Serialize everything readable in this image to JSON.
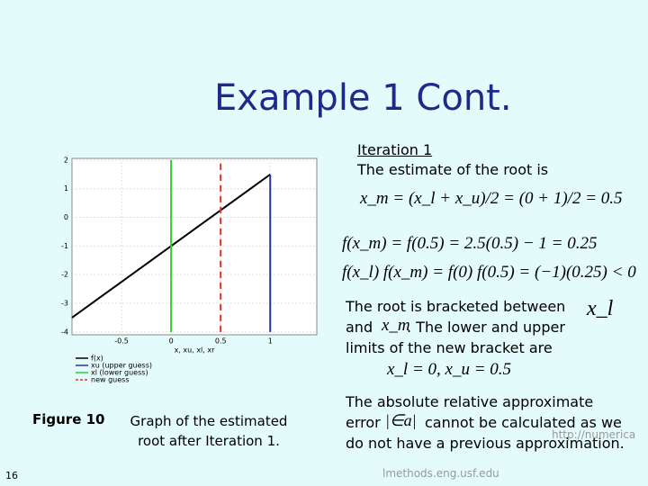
{
  "slide": {
    "title": "Example 1 Cont.",
    "heading": "Iteration 1",
    "intro": "The estimate of the root is",
    "formula_xm": "x_m = (x_l + x_u)/2 = (0 + 1)/2 = 0.5",
    "formula_fxm": "f(x_m) = f(0.5) = 2.5(0.5) − 1 = 0.25",
    "formula_product": "f(x_l) f(x_m) = f(0) f(0.5) = (−1)(0.25) < 0",
    "bracket_lines": [
      "The root is bracketed between",
      "and",
      ". The lower and upper",
      "limits of the new bracket are"
    ],
    "symbol_xl": "x_l",
    "symbol_xm": "x_m",
    "formula_limits": "x_l = 0,  x_u = 0.5",
    "error_lines": [
      "The absolute relative approximate",
      "error",
      "cannot be calculated as we",
      "do not have a previous approximation."
    ],
    "symbol_error": "|∈a|",
    "caption_label": "Figure 10",
    "caption_text": "Graph of the estimated root after Iteration 1.",
    "page_number": "16",
    "url_part1": "http://numerica",
    "url_part2": "lmethods.eng.usf.edu"
  },
  "figure": {
    "x_label": "x, xu, xl, xr",
    "xlim": [
      -1,
      1.47
    ],
    "ylim": [
      -4.1,
      2.06
    ],
    "xticks": [
      -0.5,
      0,
      0.5,
      1
    ],
    "yticks": [
      -4,
      -3,
      -2,
      -1,
      0,
      1,
      2
    ],
    "series": [
      {
        "name": "f(x)",
        "color": "#000000",
        "x": [
          -1,
          1
        ],
        "values": [
          -3.5,
          1.5
        ]
      },
      {
        "name": "xu (upper guess)",
        "color": "#1f3a8f",
        "x": [
          1,
          1
        ],
        "values": [
          -4,
          1.5
        ]
      },
      {
        "name": "xl (lower guess)",
        "color": "#33cc33",
        "x": [
          0,
          0
        ],
        "values": [
          -4,
          2
        ]
      },
      {
        "name": "new guess",
        "color": "#e03030",
        "dashed": true,
        "x": [
          0.5,
          0.5
        ],
        "values": [
          -4,
          2
        ]
      }
    ]
  }
}
